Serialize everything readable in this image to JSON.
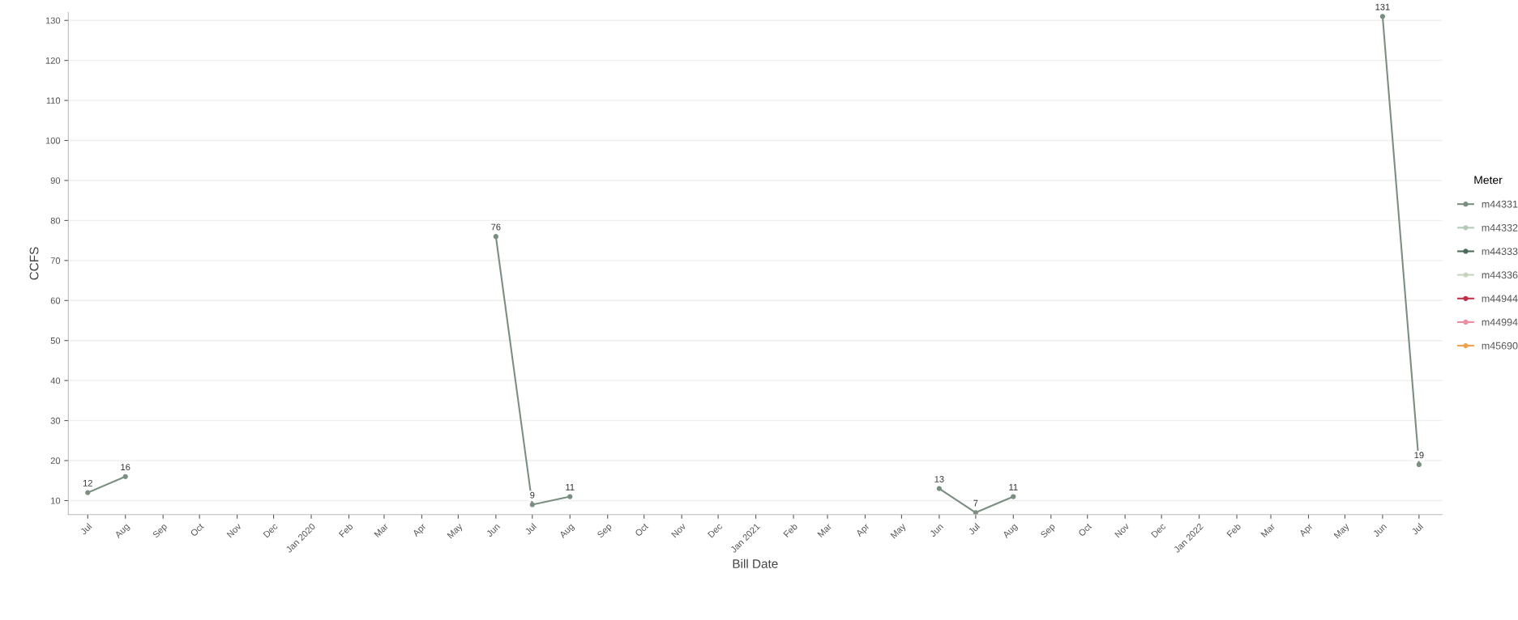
{
  "chart_data": {
    "type": "line",
    "xlabel": "Bill Date",
    "ylabel": "CCFS",
    "legend_title": "Meter",
    "legend": "right",
    "x": [
      "2019-07",
      "2019-08",
      "2019-09",
      "2019-10",
      "2019-11",
      "2019-12",
      "2020-01",
      "2020-02",
      "2020-03",
      "2020-04",
      "2020-05",
      "2020-06",
      "2020-07",
      "2020-08",
      "2020-09",
      "2020-10",
      "2020-11",
      "2020-12",
      "2021-01",
      "2021-02",
      "2021-03",
      "2021-04",
      "2021-05",
      "2021-06",
      "2021-07",
      "2021-08",
      "2021-09",
      "2021-10",
      "2021-11",
      "2021-12",
      "2022-01",
      "2022-02",
      "2022-03",
      "2022-04",
      "2022-05",
      "2022-06",
      "2022-07"
    ],
    "series": [
      {
        "name": "m44331",
        "color": "#7a8f80",
        "values": [
          12,
          16,
          null,
          null,
          null,
          null,
          null,
          null,
          null,
          null,
          null,
          76,
          9,
          11,
          null,
          null,
          null,
          null,
          null,
          null,
          null,
          null,
          null,
          13,
          7,
          11,
          null,
          null,
          null,
          null,
          null,
          null,
          null,
          null,
          null,
          131,
          19
        ]
      },
      {
        "name": "m44332",
        "color": "#b5c9b8",
        "values": [
          null,
          null,
          null,
          null,
          null,
          null,
          null,
          null,
          null,
          null,
          null,
          null,
          null,
          null,
          null,
          null,
          null,
          null,
          null,
          null,
          null,
          null,
          null,
          null,
          null,
          null,
          null,
          null,
          null,
          null,
          null,
          null,
          null,
          null,
          null,
          null,
          null
        ]
      },
      {
        "name": "m44333",
        "color": "#4d6b5a",
        "values": [
          null,
          null,
          null,
          null,
          null,
          null,
          null,
          null,
          null,
          null,
          null,
          null,
          null,
          null,
          null,
          null,
          null,
          null,
          null,
          null,
          null,
          null,
          null,
          null,
          null,
          null,
          null,
          null,
          null,
          null,
          null,
          null,
          null,
          null,
          null,
          null,
          null
        ]
      },
      {
        "name": "m44336",
        "color": "#c8d4c0",
        "values": [
          null,
          null,
          null,
          null,
          null,
          null,
          null,
          null,
          null,
          null,
          null,
          null,
          null,
          null,
          null,
          null,
          null,
          null,
          null,
          null,
          null,
          null,
          null,
          null,
          null,
          null,
          null,
          null,
          null,
          null,
          null,
          null,
          null,
          null,
          null,
          null,
          null
        ]
      },
      {
        "name": "m44944",
        "color": "#c0304a",
        "values": [
          null,
          null,
          null,
          null,
          null,
          null,
          null,
          null,
          null,
          null,
          null,
          null,
          null,
          null,
          null,
          null,
          null,
          null,
          null,
          null,
          null,
          null,
          null,
          null,
          null,
          null,
          null,
          null,
          null,
          null,
          null,
          null,
          null,
          null,
          null,
          null,
          null
        ]
      },
      {
        "name": "m44994",
        "color": "#f08ca0",
        "values": [
          null,
          null,
          null,
          null,
          null,
          null,
          null,
          null,
          null,
          null,
          null,
          null,
          null,
          null,
          null,
          null,
          null,
          null,
          null,
          null,
          null,
          null,
          null,
          null,
          null,
          null,
          null,
          null,
          null,
          null,
          null,
          null,
          null,
          null,
          null,
          null,
          null
        ]
      },
      {
        "name": "m45690",
        "color": "#f0a050",
        "values": [
          null,
          null,
          null,
          null,
          null,
          null,
          null,
          null,
          null,
          null,
          null,
          null,
          null,
          null,
          null,
          null,
          null,
          null,
          null,
          null,
          null,
          null,
          null,
          null,
          null,
          null,
          null,
          null,
          null,
          null,
          null,
          null,
          null,
          null,
          null,
          null,
          null
        ]
      }
    ],
    "data_labels": true,
    "marker": "circle",
    "grid": "y",
    "ylim": [
      6.5,
      132
    ],
    "yticks": [
      10,
      20,
      30,
      40,
      50,
      60,
      70,
      80,
      90,
      100,
      110,
      120,
      130
    ],
    "xlim": [
      "2019-06-15",
      "2022-07-20"
    ],
    "xticks": [
      {
        "value": "2019-07",
        "label": "Jul"
      },
      {
        "value": "2019-08",
        "label": "Aug"
      },
      {
        "value": "2019-09",
        "label": "Sep"
      },
      {
        "value": "2019-10",
        "label": "Oct"
      },
      {
        "value": "2019-11",
        "label": "Nov"
      },
      {
        "value": "2019-12",
        "label": "Dec"
      },
      {
        "value": "2020-01",
        "label": "Jan 2020"
      },
      {
        "value": "2020-02",
        "label": "Feb"
      },
      {
        "value": "2020-03",
        "label": "Mar"
      },
      {
        "value": "2020-04",
        "label": "Apr"
      },
      {
        "value": "2020-05",
        "label": "May"
      },
      {
        "value": "2020-06",
        "label": "Jun"
      },
      {
        "value": "2020-07",
        "label": "Jul"
      },
      {
        "value": "2020-08",
        "label": "Aug"
      },
      {
        "value": "2020-09",
        "label": "Sep"
      },
      {
        "value": "2020-10",
        "label": "Oct"
      },
      {
        "value": "2020-11",
        "label": "Nov"
      },
      {
        "value": "2020-12",
        "label": "Dec"
      },
      {
        "value": "2021-01",
        "label": "Jan 2021"
      },
      {
        "value": "2021-02",
        "label": "Feb"
      },
      {
        "value": "2021-03",
        "label": "Mar"
      },
      {
        "value": "2021-04",
        "label": "Apr"
      },
      {
        "value": "2021-05",
        "label": "May"
      },
      {
        "value": "2021-06",
        "label": "Jun"
      },
      {
        "value": "2021-07",
        "label": "Jul"
      },
      {
        "value": "2021-08",
        "label": "Aug"
      },
      {
        "value": "2021-09",
        "label": "Sep"
      },
      {
        "value": "2021-10",
        "label": "Oct"
      },
      {
        "value": "2021-11",
        "label": "Nov"
      },
      {
        "value": "2021-12",
        "label": "Dec"
      },
      {
        "value": "2022-01",
        "label": "Jan 2022"
      },
      {
        "value": "2022-02",
        "label": "Feb"
      },
      {
        "value": "2022-03",
        "label": "Mar"
      },
      {
        "value": "2022-04",
        "label": "Apr"
      },
      {
        "value": "2022-05",
        "label": "May"
      },
      {
        "value": "2022-06",
        "label": "Jun"
      },
      {
        "value": "2022-07",
        "label": "Jul"
      }
    ]
  }
}
